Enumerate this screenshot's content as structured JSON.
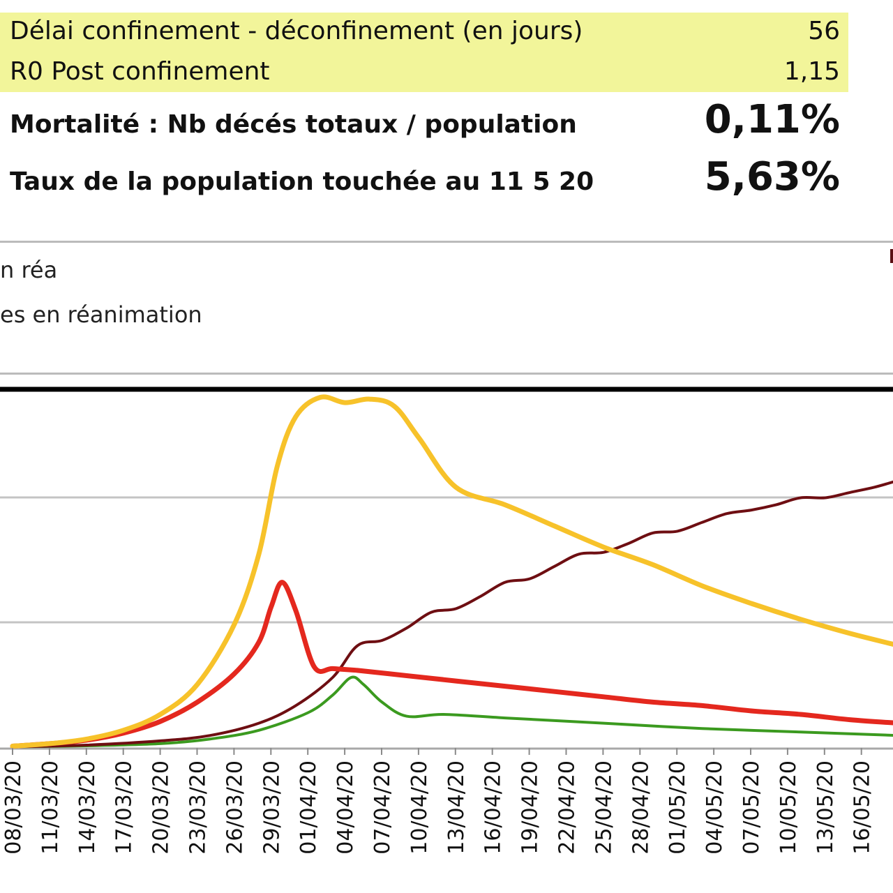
{
  "stats": {
    "rows": [
      {
        "label": "Délai confinement - déconfinement (en jours)",
        "value": "56"
      },
      {
        "label": "R0 Post confinement",
        "value": "1,15"
      }
    ],
    "mortality": {
      "label": "Mortalité : Nb décés totaux / population",
      "value": "0,11%"
    },
    "infected_rate": {
      "label": "Taux de la population touchée au 11 5 20",
      "value": "5,63%"
    }
  },
  "legend": {
    "items": [
      "n réa",
      "es en réanimation"
    ]
  },
  "colors": {
    "yellow": "#f7c22a",
    "red": "#e4281e",
    "dark_red": "#6e0e12",
    "green": "#3b9a1f",
    "grid": "#c4c4c4",
    "frame": "#000000"
  },
  "chart_data": {
    "type": "line",
    "title": "",
    "xlabel": "",
    "ylabel": "",
    "x_ticks": [
      "08/03/20",
      "11/03/20",
      "14/03/20",
      "17/03/20",
      "20/03/20",
      "23/03/20",
      "26/03/20",
      "29/03/20",
      "01/04/20",
      "04/04/20",
      "07/04/20",
      "10/04/20",
      "13/04/20",
      "16/04/20",
      "19/04/20",
      "22/04/20",
      "25/04/20",
      "28/04/20",
      "01/05/20",
      "04/05/20",
      "07/05/20",
      "10/05/20",
      "13/05/20",
      "16/05/20"
    ],
    "x_range": [
      0,
      72
    ],
    "ylim": [
      0,
      100
    ],
    "grid": true,
    "legend_position": "top, cropped",
    "series": [
      {
        "color_key": "yellow",
        "points": [
          [
            0,
            0.5
          ],
          [
            3,
            1.2
          ],
          [
            6,
            2.5
          ],
          [
            9,
            5
          ],
          [
            12,
            9.5
          ],
          [
            15,
            18
          ],
          [
            18,
            35
          ],
          [
            20,
            55
          ],
          [
            21.5,
            80
          ],
          [
            23,
            94
          ],
          [
            25,
            99.5
          ],
          [
            27,
            98
          ],
          [
            29,
            99
          ],
          [
            31,
            97
          ],
          [
            33,
            88
          ],
          [
            36,
            74
          ],
          [
            40,
            69
          ],
          [
            44,
            63
          ],
          [
            48,
            57
          ],
          [
            52,
            52
          ],
          [
            56,
            46
          ],
          [
            60,
            41
          ],
          [
            64,
            36.5
          ],
          [
            68,
            32.5
          ],
          [
            72,
            29
          ]
        ]
      },
      {
        "color_key": "red",
        "points": [
          [
            0,
            0.5
          ],
          [
            3,
            1.2
          ],
          [
            6,
            2.2
          ],
          [
            9,
            4.2
          ],
          [
            12,
            7.5
          ],
          [
            15,
            13
          ],
          [
            18,
            21
          ],
          [
            20,
            30
          ],
          [
            21,
            40
          ],
          [
            21.9,
            47
          ],
          [
            23,
            39
          ],
          [
            24.5,
            23
          ],
          [
            26,
            22.5
          ],
          [
            28,
            22
          ],
          [
            32,
            20.5
          ],
          [
            36,
            19
          ],
          [
            40,
            17.5
          ],
          [
            44,
            16
          ],
          [
            48,
            14.5
          ],
          [
            52,
            13
          ],
          [
            56,
            12
          ],
          [
            60,
            10.5
          ],
          [
            64,
            9.5
          ],
          [
            68,
            8
          ],
          [
            72,
            7
          ]
        ]
      },
      {
        "color_key": "dark_red",
        "points": [
          [
            0,
            0.3
          ],
          [
            6,
            0.8
          ],
          [
            12,
            2
          ],
          [
            16,
            3.5
          ],
          [
            20,
            7
          ],
          [
            23,
            12
          ],
          [
            26,
            20
          ],
          [
            28,
            29
          ],
          [
            30,
            30.5
          ],
          [
            32,
            34
          ],
          [
            34,
            38.5
          ],
          [
            36,
            39.5
          ],
          [
            38,
            43
          ],
          [
            40,
            47
          ],
          [
            42,
            48
          ],
          [
            44,
            51.5
          ],
          [
            46,
            55
          ],
          [
            48,
            55.5
          ],
          [
            50,
            58
          ],
          [
            52,
            61
          ],
          [
            54,
            61.5
          ],
          [
            56,
            64
          ],
          [
            58,
            66.5
          ],
          [
            60,
            67.5
          ],
          [
            62,
            69
          ],
          [
            64,
            71
          ],
          [
            66,
            71
          ],
          [
            68,
            72.5
          ],
          [
            70,
            74
          ],
          [
            72,
            76
          ]
        ]
      },
      {
        "color_key": "green",
        "points": [
          [
            0,
            0.3
          ],
          [
            6,
            0.6
          ],
          [
            12,
            1.2
          ],
          [
            16,
            2.5
          ],
          [
            20,
            5
          ],
          [
            24,
            10
          ],
          [
            26,
            15
          ],
          [
            27.5,
            20
          ],
          [
            28.5,
            18
          ],
          [
            30,
            13
          ],
          [
            32,
            9
          ],
          [
            35,
            9.5
          ],
          [
            40,
            8.5
          ],
          [
            48,
            7
          ],
          [
            56,
            5.5
          ],
          [
            64,
            4.5
          ],
          [
            72,
            3.5
          ]
        ]
      }
    ]
  }
}
